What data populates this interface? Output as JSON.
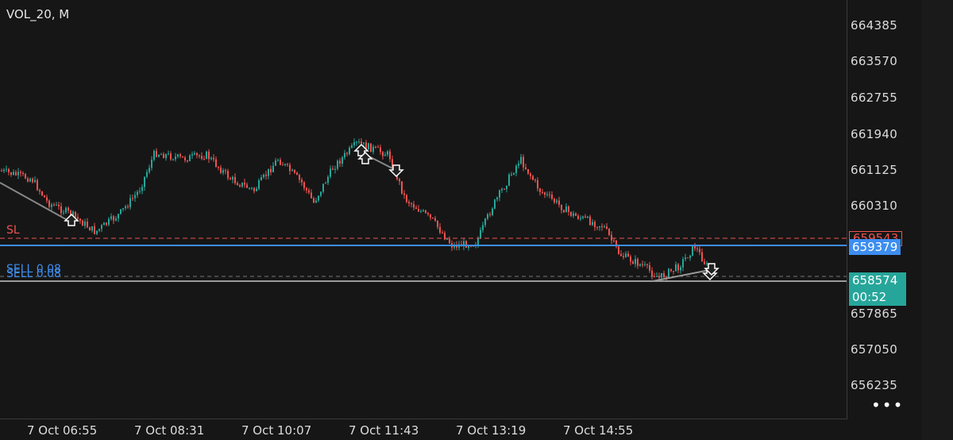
{
  "symbol": "VOL_20, M",
  "price_axis": [
    "664385",
    "663570",
    "662755",
    "661940",
    "661125",
    "660310",
    "657865",
    "657050",
    "656235"
  ],
  "time_axis": [
    "7 Oct 06:55",
    "7 Oct 08:31",
    "7 Oct 10:07",
    "7 Oct 11:43",
    "7 Oct 13:19",
    "7 Oct 14:55"
  ],
  "lines": {
    "sl_label": "SL",
    "sl_price": "659543",
    "sell_label_1": "SELL 0.08",
    "sell_label_2": "SELL 0.08",
    "position_price": "659379"
  },
  "current": {
    "price": "658574",
    "countdown": "00:52"
  },
  "more_label": "•••",
  "colors": {
    "background": "#161616",
    "bull_candle": "#26a69a",
    "bear_candle": "#ef5350",
    "sl_line": "#ef5350",
    "position_line": "#3d8ef0",
    "current_badge": "#26a69a",
    "position_badge": "#3d8ef0"
  },
  "icons": [
    "buy-arrow-icon",
    "sell-arrow-icon",
    "more-icon"
  ]
}
